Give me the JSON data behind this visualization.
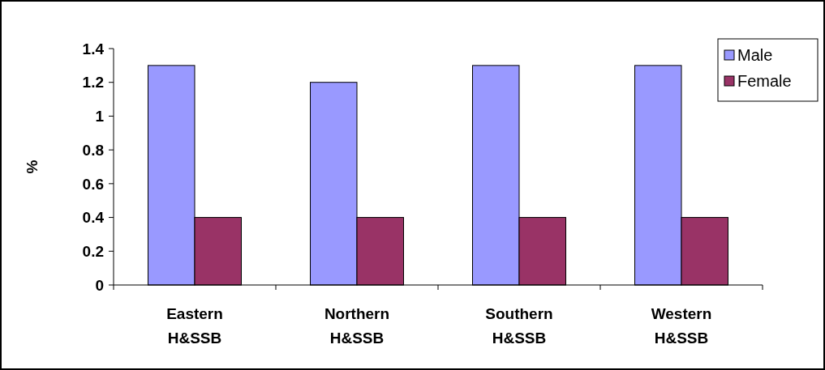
{
  "chart_data": {
    "type": "bar",
    "ylabel": "%",
    "categories": [
      "Eastern H&SSB",
      "Northern H&SSB",
      "Southern H&SSB",
      "Western H&SSB"
    ],
    "series": [
      {
        "name": "Male",
        "color": "#9999ff",
        "values": [
          1.3,
          1.2,
          1.3,
          1.3
        ]
      },
      {
        "name": "Female",
        "color": "#993366",
        "values": [
          0.4,
          0.4,
          0.4,
          0.4
        ]
      }
    ],
    "ylim": [
      0,
      1.4
    ],
    "yticks": [
      0,
      0.2,
      0.4,
      0.6,
      0.8,
      1,
      1.2,
      1.4
    ],
    "grid": false,
    "legend": "top right"
  }
}
